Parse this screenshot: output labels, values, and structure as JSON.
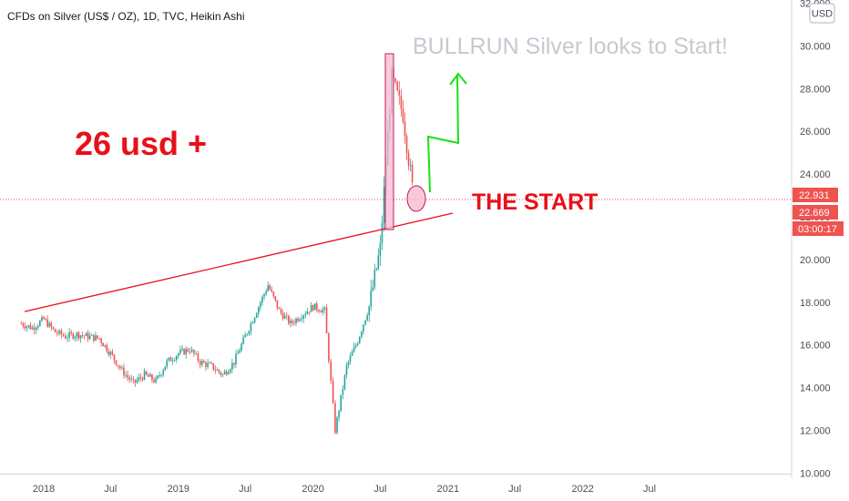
{
  "header": {
    "symbol_info": "CFDs on Silver (US$ / OZ), 1D, TVC, Heikin Ashi"
  },
  "watermark": "BULLRUN Silver looks to Start!",
  "notes": {
    "target_text": "26 usd +",
    "start_text": "THE START"
  },
  "currency_button": "USD",
  "price_tags": [
    {
      "label": "22.931",
      "price": 22.931,
      "color": "#ef5350"
    },
    {
      "label": "22.669",
      "price": 22.669,
      "color": "#ef5350"
    },
    {
      "label": "03:00:17",
      "price": 21.9,
      "color": "#ef5350"
    }
  ],
  "colors": {
    "up": "#26a69a",
    "down": "#ef5350",
    "annotation": "#e8101b",
    "arrow": "#1ae01a",
    "highlight": "#f48fb1"
  },
  "chart_data": {
    "type": "candlestick",
    "style": "Heikin Ashi",
    "x_ticks": [
      "2018",
      "Jul",
      "2019",
      "Jul",
      "2020",
      "Jul",
      "2021",
      "Jul",
      "2022",
      "Jul"
    ],
    "y_ticks": [
      "10.000",
      "12.000",
      "14.000",
      "16.000",
      "18.000",
      "20.000",
      "22.000",
      "24.000",
      "26.000",
      "28.000",
      "30.000",
      "32.000"
    ],
    "ylim": [
      10,
      32
    ],
    "x_axis_unit": "date",
    "series": [
      {
        "date": "2017-11",
        "close": 17.0
      },
      {
        "date": "2017-12",
        "close": 16.8
      },
      {
        "date": "2018-01",
        "close": 17.2
      },
      {
        "date": "2018-02",
        "close": 16.6
      },
      {
        "date": "2018-03",
        "close": 16.4
      },
      {
        "date": "2018-04",
        "close": 16.5
      },
      {
        "date": "2018-05",
        "close": 16.4
      },
      {
        "date": "2018-06",
        "close": 16.3
      },
      {
        "date": "2018-07",
        "close": 15.6
      },
      {
        "date": "2018-08",
        "close": 14.8
      },
      {
        "date": "2018-09",
        "close": 14.2
      },
      {
        "date": "2018-10",
        "close": 14.6
      },
      {
        "date": "2018-11",
        "close": 14.3
      },
      {
        "date": "2018-12",
        "close": 15.2
      },
      {
        "date": "2019-01",
        "close": 15.6
      },
      {
        "date": "2019-02",
        "close": 15.8
      },
      {
        "date": "2019-03",
        "close": 15.2
      },
      {
        "date": "2019-04",
        "close": 15.0
      },
      {
        "date": "2019-05",
        "close": 14.6
      },
      {
        "date": "2019-06",
        "close": 15.2
      },
      {
        "date": "2019-07",
        "close": 16.4
      },
      {
        "date": "2019-08",
        "close": 17.6
      },
      {
        "date": "2019-09",
        "close": 18.8
      },
      {
        "date": "2019-10",
        "close": 17.6
      },
      {
        "date": "2019-11",
        "close": 17.0
      },
      {
        "date": "2019-12",
        "close": 17.4
      },
      {
        "date": "2020-01",
        "close": 17.8
      },
      {
        "date": "2020-02",
        "close": 17.6
      },
      {
        "date": "2020-03",
        "close": 12.0
      },
      {
        "date": "2020-04",
        "close": 15.0
      },
      {
        "date": "2020-05",
        "close": 16.2
      },
      {
        "date": "2020-06",
        "close": 17.8
      },
      {
        "date": "2020-07",
        "close": 20.5
      },
      {
        "date": "2020-08",
        "close": 28.5
      },
      {
        "date": "2020-09",
        "close": 26.8
      },
      {
        "date": "2020-10",
        "close": 22.7
      }
    ],
    "annotations": [
      {
        "type": "trendline",
        "from": {
          "date": "2017-12",
          "price": 17.4
        },
        "to": {
          "date": "2020-12",
          "price": 21.8
        }
      },
      {
        "type": "rectangle",
        "from": {
          "date": "2020-07",
          "price": 21.4
        },
        "to": {
          "date": "2020-07-25",
          "price": 29.5
        }
      },
      {
        "type": "ellipse",
        "center": {
          "date": "2020-10",
          "price": 22.6
        }
      },
      {
        "type": "arrow_path",
        "points": [
          {
            "date": "2020-11",
            "price": 23.0
          },
          {
            "date": "2020-11",
            "price": 25.8
          },
          {
            "date": "2020-12",
            "price": 25.4
          },
          {
            "date": "2020-12",
            "price": 28.6
          }
        ]
      }
    ],
    "grid": false
  }
}
